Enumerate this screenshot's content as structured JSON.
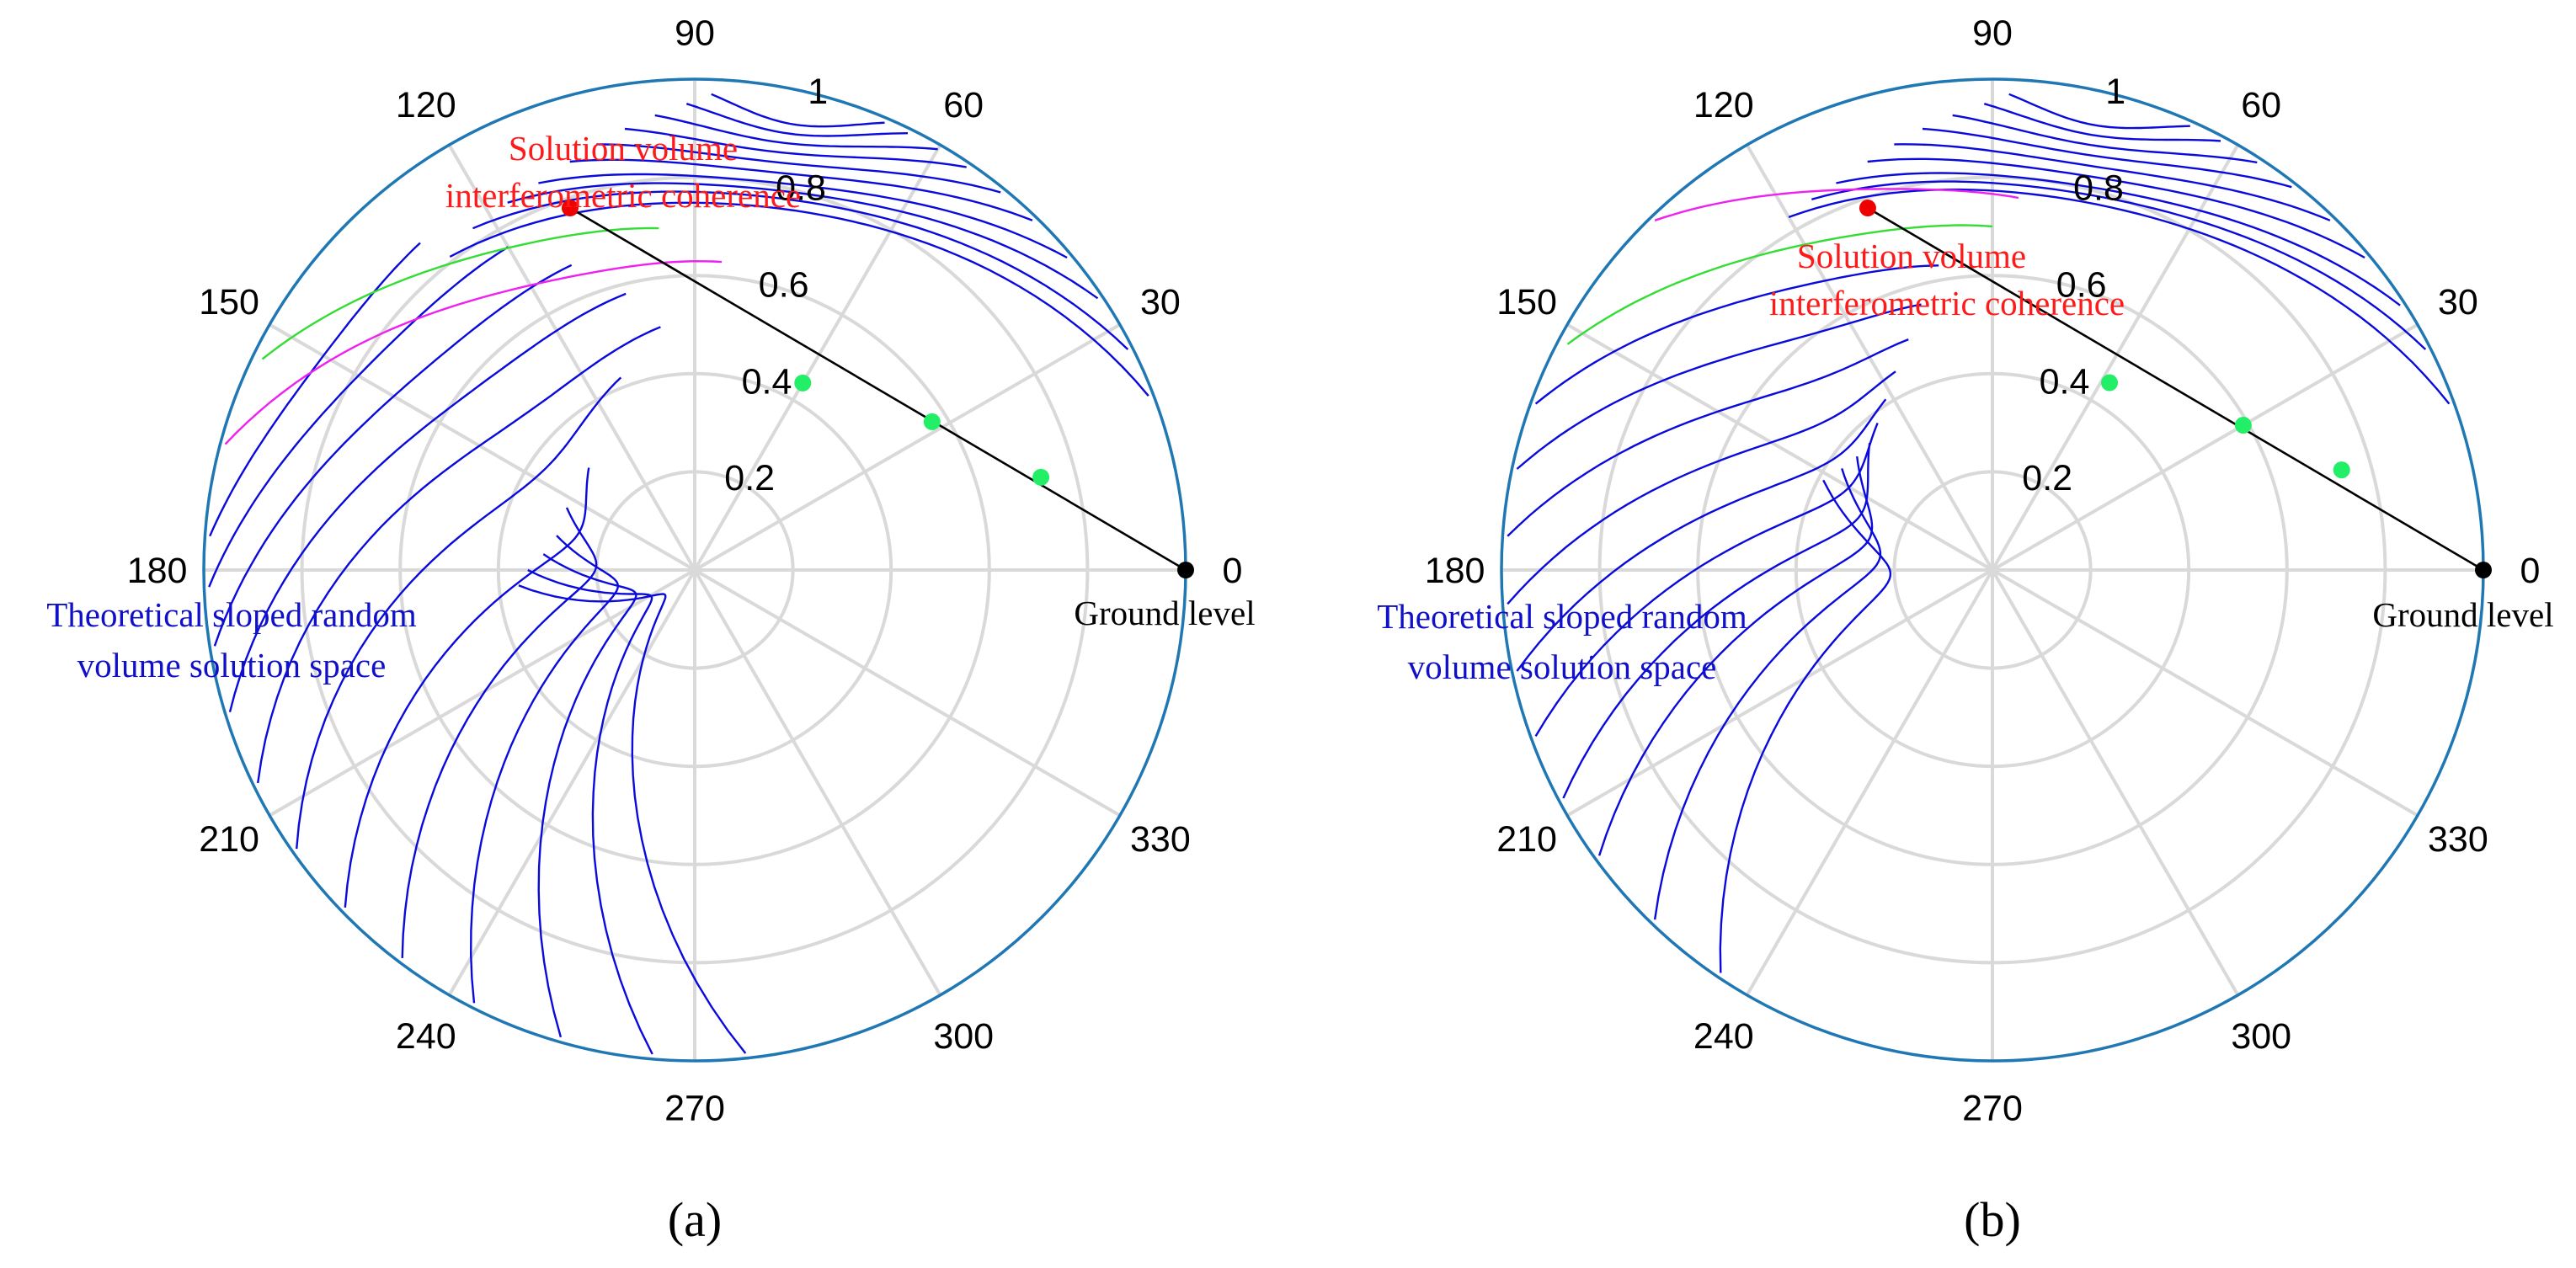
{
  "chart_data": [
    {
      "type": "polar",
      "panel_label": "(a)",
      "angle_ticks": [
        "0",
        "30",
        "60",
        "90",
        "120",
        "150",
        "180",
        "210",
        "240",
        "270",
        "300",
        "330"
      ],
      "radius_ticks": [
        "0.2",
        "0.4",
        "0.6",
        "0.8",
        "1"
      ],
      "rlim": [
        0,
        1
      ],
      "grid": true,
      "line_of_points": {
        "name": "coherence line",
        "from": {
          "r": 1.0,
          "theta_deg": 0
        },
        "to": {
          "r": 0.78,
          "theta_deg": 109
        },
        "ground_point": {
          "r": 1.0,
          "theta_deg": 0,
          "label": "Ground level"
        },
        "intermediate_points": [
          {
            "r": 0.73,
            "theta_deg": 15
          },
          {
            "r": 0.57,
            "theta_deg": 32
          },
          {
            "r": 0.44,
            "theta_deg": 60
          }
        ],
        "solution_point": {
          "r": 0.78,
          "theta_deg": 109,
          "label_lines": [
            "Solution volume",
            "interferometric coherence"
          ]
        }
      },
      "solution_space": {
        "label_lines": [
          "Theoretical sloped random",
          "volume solution space"
        ],
        "upper_arcs": [
          {
            "ts": 67,
            "te": 88,
            "rs": 0.99,
            "re": 0.97,
            "c": -0.05
          },
          {
            "ts": 64,
            "te": 91,
            "rs": 0.99,
            "re": 0.95,
            "c": -0.06
          },
          {
            "ts": 60,
            "te": 95,
            "rs": 0.99,
            "re": 0.93,
            "c": -0.07
          },
          {
            "ts": 56,
            "te": 99,
            "rs": 0.99,
            "re": 0.91,
            "c": -0.08
          },
          {
            "ts": 51,
            "te": 103,
            "rs": 0.99,
            "re": 0.89,
            "c": -0.09
          },
          {
            "ts": 46,
            "te": 107,
            "rs": 0.99,
            "re": 0.87,
            "c": -0.1
          },
          {
            "ts": 40,
            "te": 112,
            "rs": 0.99,
            "re": 0.85,
            "c": -0.11
          },
          {
            "ts": 34,
            "te": 117,
            "rs": 0.99,
            "re": 0.84,
            "c": -0.12
          },
          {
            "ts": 27,
            "te": 123,
            "rs": 0.99,
            "re": 0.83,
            "c": -0.13
          },
          {
            "ts": 21,
            "te": 128,
            "rs": 0.99,
            "re": 0.81,
            "c": -0.14
          }
        ],
        "green_arc": {
          "ts": 96,
          "te": 154,
          "rs": 0.7,
          "re": 0.98,
          "c": -0.06
        },
        "magenta_arc": {
          "ts": 85,
          "te": 165,
          "rs": 0.63,
          "re": 0.99,
          "c": -0.12
        },
        "lower_arcs": [
          {
            "ts": 130,
            "te": 176,
            "rs": 0.87,
            "re": 0.99,
            "c": -0.05
          },
          {
            "ts": 120,
            "te": 182,
            "rs": 0.76,
            "re": 0.99,
            "c": -0.08
          },
          {
            "ts": 112,
            "te": 189,
            "rs": 0.67,
            "re": 0.99,
            "c": -0.12
          },
          {
            "ts": 104,
            "te": 197,
            "rs": 0.58,
            "re": 0.99,
            "c": -0.17
          },
          {
            "ts": 98,
            "te": 206,
            "rs": 0.5,
            "re": 0.99,
            "c": -0.23
          },
          {
            "ts": 111,
            "te": 215,
            "rs": 0.42,
            "re": 0.99,
            "c": -0.28
          },
          {
            "ts": 136,
            "te": 224,
            "rs": 0.3,
            "re": 0.99,
            "c": -0.32
          },
          {
            "ts": 154,
            "te": 233,
            "rs": 0.29,
            "re": 0.99,
            "c": -0.37
          },
          {
            "ts": 166,
            "te": 243,
            "rs": 0.29,
            "re": 0.99,
            "c": -0.42
          },
          {
            "ts": 174,
            "te": 254,
            "rs": 0.31,
            "re": 0.99,
            "c": -0.47
          },
          {
            "ts": 180,
            "te": 265,
            "rs": 0.34,
            "re": 0.99,
            "c": -0.52
          },
          {
            "ts": 185,
            "te": 276,
            "rs": 0.36,
            "re": 0.99,
            "c": -0.56
          }
        ]
      }
    },
    {
      "type": "polar",
      "panel_label": "(b)",
      "angle_ticks": [
        "0",
        "30",
        "60",
        "90",
        "120",
        "150",
        "180",
        "210",
        "240",
        "270",
        "300",
        "330"
      ],
      "radius_ticks": [
        "0.2",
        "0.4",
        "0.6",
        "0.8",
        "1"
      ],
      "rlim": [
        0,
        1
      ],
      "grid": true,
      "line_of_points": {
        "name": "coherence line",
        "from": {
          "r": 1.0,
          "theta_deg": 0
        },
        "to": {
          "r": 0.78,
          "theta_deg": 109
        },
        "ground_point": {
          "r": 1.0,
          "theta_deg": 0,
          "label": "Ground level"
        },
        "intermediate_points": [
          {
            "r": 0.74,
            "theta_deg": 16
          },
          {
            "r": 0.59,
            "theta_deg": 30
          },
          {
            "r": 0.45,
            "theta_deg": 58
          }
        ],
        "solution_point": {
          "r": 0.78,
          "theta_deg": 109,
          "label_lines": [
            "Solution volume",
            "interferometric coherence"
          ]
        }
      },
      "solution_space": {
        "label_lines": [
          "Theoretical sloped random",
          "volume solution space"
        ],
        "upper_arcs": [
          {
            "ts": 66,
            "te": 88,
            "rs": 0.99,
            "re": 0.97,
            "c": -0.05
          },
          {
            "ts": 62,
            "te": 91,
            "rs": 0.99,
            "re": 0.95,
            "c": -0.06
          },
          {
            "ts": 57,
            "te": 95,
            "rs": 0.99,
            "re": 0.93,
            "c": -0.07
          },
          {
            "ts": 52,
            "te": 99,
            "rs": 0.99,
            "re": 0.91,
            "c": -0.08
          },
          {
            "ts": 46,
            "te": 103,
            "rs": 0.99,
            "re": 0.89,
            "c": -0.09
          },
          {
            "ts": 40,
            "te": 107,
            "rs": 0.99,
            "re": 0.87,
            "c": -0.1
          },
          {
            "ts": 33,
            "te": 112,
            "rs": 0.99,
            "re": 0.85,
            "c": -0.11
          },
          {
            "ts": 27,
            "te": 116,
            "rs": 0.99,
            "re": 0.84,
            "c": -0.12
          },
          {
            "ts": 20,
            "te": 120,
            "rs": 0.99,
            "re": 0.83,
            "c": -0.13
          }
        ],
        "magenta_arc": {
          "ts": 86,
          "te": 134,
          "rs": 0.76,
          "re": 0.99,
          "c": -0.05
        },
        "green_arc": {
          "ts": 90,
          "te": 152,
          "rs": 0.7,
          "re": 0.98,
          "c": -0.07
        },
        "lower_arcs": [
          {
            "ts": 100,
            "te": 160,
            "rs": 0.63,
            "re": 0.99,
            "c": -0.08
          },
          {
            "ts": 105,
            "te": 168,
            "rs": 0.56,
            "re": 0.99,
            "c": -0.12
          },
          {
            "ts": 110,
            "te": 176,
            "rs": 0.5,
            "re": 0.99,
            "c": -0.16
          },
          {
            "ts": 116,
            "te": 184,
            "rs": 0.45,
            "re": 0.99,
            "c": -0.2
          },
          {
            "ts": 122,
            "te": 192,
            "rs": 0.41,
            "re": 0.99,
            "c": -0.24
          },
          {
            "ts": 128,
            "te": 200,
            "rs": 0.38,
            "re": 0.99,
            "c": -0.28
          },
          {
            "ts": 134,
            "te": 208,
            "rs": 0.36,
            "re": 0.99,
            "c": -0.32
          },
          {
            "ts": 140,
            "te": 216,
            "rs": 0.36,
            "re": 0.99,
            "c": -0.36
          },
          {
            "ts": 146,
            "te": 226,
            "rs": 0.37,
            "re": 0.99,
            "c": -0.4
          },
          {
            "ts": 152,
            "te": 236,
            "rs": 0.39,
            "re": 0.99,
            "c": -0.44
          }
        ]
      }
    }
  ],
  "colors": {
    "grid": "#d9d9d9",
    "outer_ring": "#1f77b4",
    "arc_blue": "#0a0adc",
    "arc_green": "#33dd33",
    "arc_magenta": "#ee22ee",
    "point_green": "#22ee66",
    "point_red": "#ee0000",
    "point_black": "#000000",
    "label_red": "#ff1a1a",
    "label_blue": "#1010c8"
  }
}
